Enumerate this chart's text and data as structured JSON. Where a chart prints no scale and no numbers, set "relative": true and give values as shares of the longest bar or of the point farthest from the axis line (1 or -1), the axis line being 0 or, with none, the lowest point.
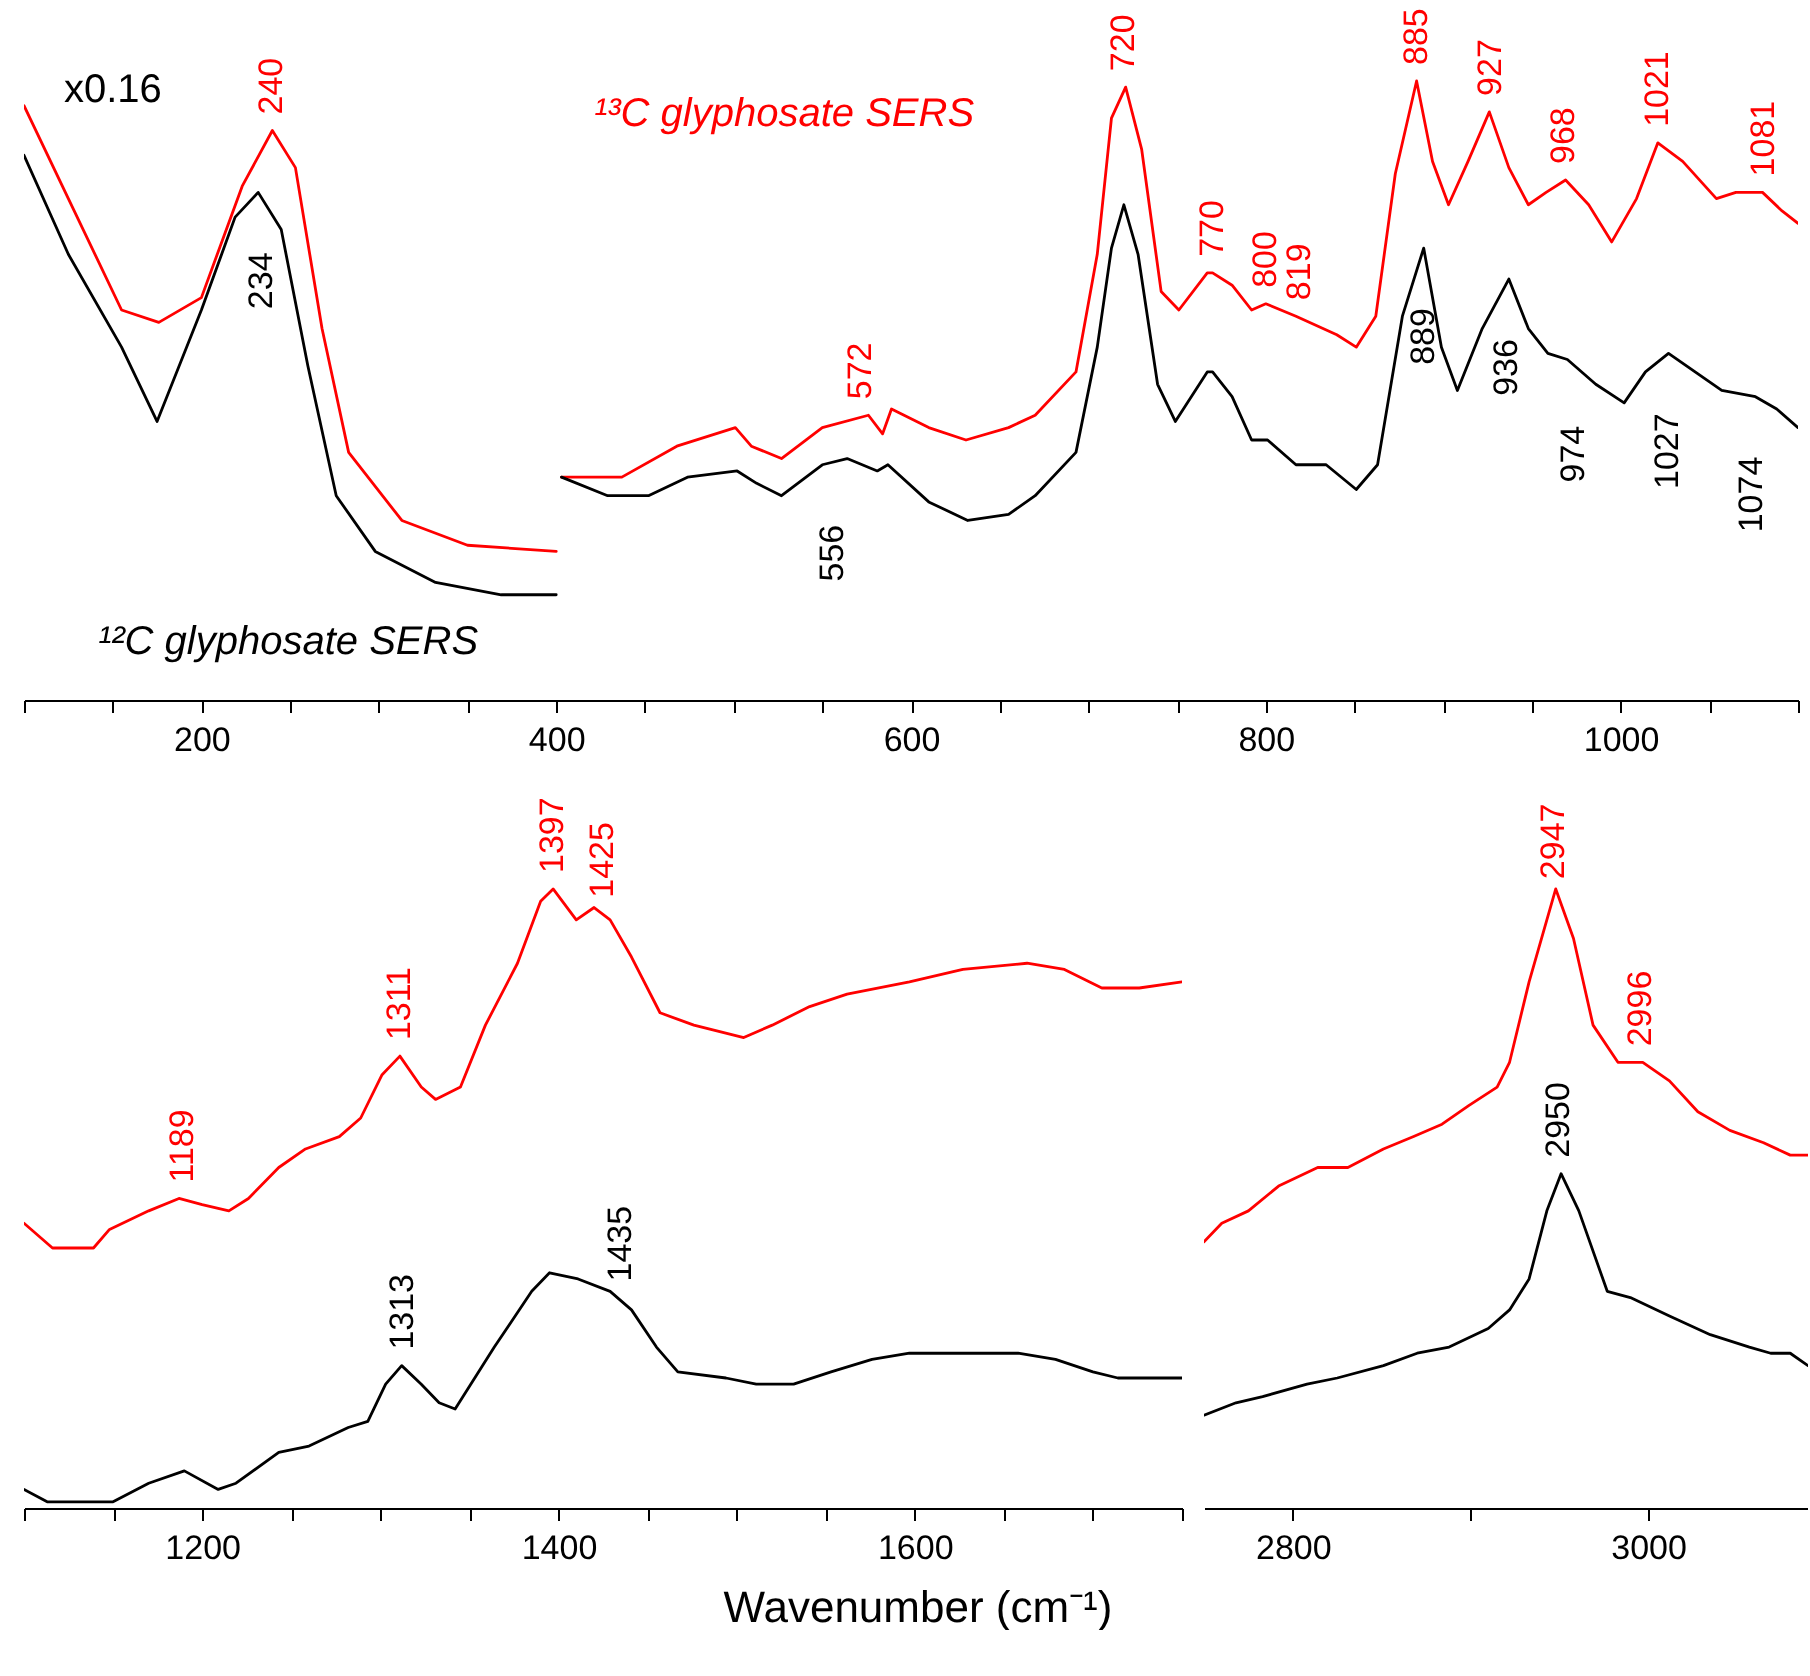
{
  "chart_data": [
    {
      "type": "line",
      "relative": true,
      "xlim": [
        100,
        1100
      ],
      "xticks": [
        {
          "value": 100,
          "label": null
        },
        {
          "value": 150,
          "label": null
        },
        200,
        {
          "value": 250,
          "label": null
        },
        {
          "value": 300,
          "label": null
        },
        {
          "value": 350,
          "label": null
        },
        400,
        {
          "value": 450,
          "label": null
        },
        {
          "value": 500,
          "label": null
        },
        {
          "value": 550,
          "label": null
        },
        600,
        {
          "value": 650,
          "label": null
        },
        {
          "value": 700,
          "label": null
        },
        {
          "value": 750,
          "label": null
        },
        800,
        {
          "value": 850,
          "label": null
        },
        {
          "value": 900,
          "label": null
        },
        {
          "value": 950,
          "label": null
        },
        1000,
        {
          "value": 1050,
          "label": null
        },
        {
          "value": 1100,
          "label": null
        }
      ],
      "annotations": [
        "x0.16",
        {
          "text": "240",
          "x": 240,
          "y": 0.92
        },
        {
          "text": "234",
          "x": 234,
          "y": 0.82
        },
        {
          "text": "572",
          "x": 572,
          "y": 0.46
        },
        {
          "text": "556",
          "x": 556,
          "y": 0.38
        },
        {
          "text": "720",
          "x": 720,
          "y": 0.99
        },
        {
          "text": "770",
          "x": 770,
          "y": 0.69
        },
        {
          "text": "800",
          "x": 800,
          "y": 0.64
        },
        {
          "text": "819",
          "x": 819,
          "y": 0.62
        },
        {
          "text": "885",
          "x": 885,
          "y": 1.0
        },
        {
          "text": "927",
          "x": 927,
          "y": 0.95
        },
        {
          "text": "968",
          "x": 968,
          "y": 0.84
        },
        {
          "text": "1021",
          "x": 1021,
          "y": 0.9
        },
        {
          "text": "1081",
          "x": 1081,
          "y": 0.82
        },
        {
          "text": "889",
          "x": 889,
          "y": 0.73
        },
        {
          "text": "936",
          "x": 936,
          "y": 0.68
        },
        {
          "text": "974",
          "x": 974,
          "y": 0.54
        },
        {
          "text": "1027",
          "x": 1027,
          "y": 0.56
        },
        {
          "text": "1074",
          "x": 1074,
          "y": 0.49
        }
      ],
      "series": [
        {
          "name": "¹³C glyphosate SERS",
          "color": "#ff0000",
          "x": [
            100,
            125,
            155,
            176,
            200,
            223,
            240,
            253,
            268,
            283,
            313,
            350,
            400,
            401,
            403,
            437,
            468,
            501,
            510,
            527,
            550,
            576,
            584,
            589,
            610,
            631,
            655,
            670,
            693,
            705,
            713,
            721,
            730,
            741,
            751,
            767,
            770,
            781,
            792,
            800,
            817,
            840,
            851,
            862,
            873,
            885,
            894,
            903,
            914,
            926,
            937,
            948,
            958,
            969,
            982,
            995,
            1009,
            1021,
            1035,
            1054,
            1065,
            1080,
            1091,
            1100
          ],
          "values": [
            0.96,
            0.81,
            0.63,
            0.61,
            0.65,
            0.83,
            0.92,
            0.86,
            0.6,
            0.4,
            0.29,
            0.25,
            0.24,
            null,
            0.36,
            0.36,
            0.41,
            0.44,
            0.41,
            0.39,
            0.44,
            0.46,
            0.43,
            0.47,
            0.44,
            0.42,
            0.44,
            0.46,
            0.53,
            0.72,
            0.94,
            0.99,
            0.89,
            0.66,
            0.63,
            0.69,
            0.69,
            0.67,
            0.63,
            0.64,
            0.62,
            0.59,
            0.57,
            0.62,
            0.85,
            1.0,
            0.87,
            0.8,
            0.87,
            0.95,
            0.86,
            0.8,
            0.82,
            0.84,
            0.8,
            0.74,
            0.81,
            0.9,
            0.87,
            0.81,
            0.82,
            0.82,
            0.79,
            0.77
          ]
        },
        {
          "name": "¹²C glyphosate SERS",
          "color": "#000000",
          "x": [
            100,
            125,
            155,
            175,
            200,
            219,
            232,
            245,
            260,
            276,
            298,
            332,
            369,
            400,
            401,
            403,
            429,
            452,
            474,
            502,
            513,
            527,
            550,
            564,
            581,
            587,
            610,
            632,
            655,
            670,
            693,
            705,
            713,
            720,
            728,
            739,
            749,
            767,
            770,
            781,
            792,
            801,
            817,
            834,
            851,
            863,
            877,
            889,
            899,
            908,
            922,
            937,
            948,
            959,
            970,
            986,
            1002,
            1014,
            1027,
            1042,
            1057,
            1076,
            1088,
            1100
          ],
          "values": [
            0.88,
            0.72,
            0.57,
            0.45,
            0.63,
            0.78,
            0.82,
            0.76,
            0.54,
            0.33,
            0.24,
            0.19,
            0.17,
            0.17,
            null,
            0.36,
            0.33,
            0.33,
            0.36,
            0.37,
            0.35,
            0.33,
            0.38,
            0.39,
            0.37,
            0.38,
            0.32,
            0.29,
            0.3,
            0.33,
            0.4,
            0.57,
            0.73,
            0.8,
            0.72,
            0.51,
            0.45,
            0.53,
            0.53,
            0.49,
            0.42,
            0.42,
            0.38,
            0.38,
            0.34,
            0.38,
            0.62,
            0.73,
            0.57,
            0.5,
            0.6,
            0.68,
            0.6,
            0.56,
            0.55,
            0.51,
            0.48,
            0.53,
            0.56,
            0.53,
            0.5,
            0.49,
            0.47,
            0.44
          ]
        }
      ]
    },
    {
      "type": "line",
      "relative": true,
      "xlim": [
        1100,
        1750
      ],
      "xlabel": "Wavenumber (cm⁻¹)",
      "xticks": [
        {
          "value": 1100,
          "label": null
        },
        {
          "value": 1150,
          "label": null
        },
        1200,
        {
          "value": 1250,
          "label": null
        },
        {
          "value": 1300,
          "label": null
        },
        {
          "value": 1350,
          "label": null
        },
        1400,
        {
          "value": 1450,
          "label": null
        },
        {
          "value": 1500,
          "label": null
        },
        {
          "value": 1550,
          "label": null
        },
        1600,
        {
          "value": 1650,
          "label": null
        },
        {
          "value": 1700,
          "label": null
        },
        {
          "value": 1750,
          "label": null
        }
      ],
      "annotations": [
        {
          "text": "1189",
          "x": 1189,
          "y": 0.5
        },
        {
          "text": "1311",
          "x": 1311,
          "y": 0.73
        },
        {
          "text": "1397",
          "x": 1397,
          "y": 1.0
        },
        {
          "text": "1425",
          "x": 1425,
          "y": 0.96
        },
        {
          "text": "1313",
          "x": 1313,
          "y": 0.23
        },
        {
          "text": "1435",
          "x": 1435,
          "y": 0.34
        }
      ],
      "series": [
        {
          "color": "#ff0000",
          "x": [
            1100,
            1116,
            1139,
            1148,
            1170,
            1187,
            1200,
            1215,
            1226,
            1243,
            1258,
            1277,
            1289,
            1301,
            1311,
            1323,
            1331,
            1345,
            1359,
            1377,
            1390,
            1397,
            1410,
            1420,
            1429,
            1441,
            1457,
            1476,
            1504,
            1520,
            1541,
            1562,
            1597,
            1627,
            1663,
            1684,
            1705,
            1726,
            1750
          ],
          "values": [
            0.46,
            0.42,
            0.42,
            0.45,
            0.48,
            0.5,
            0.49,
            0.48,
            0.5,
            0.55,
            0.58,
            0.6,
            0.63,
            0.7,
            0.73,
            0.68,
            0.66,
            0.68,
            0.78,
            0.88,
            0.98,
            1.0,
            0.95,
            0.97,
            0.95,
            0.89,
            0.8,
            0.78,
            0.76,
            0.78,
            0.81,
            0.83,
            0.85,
            0.87,
            0.88,
            0.87,
            0.84,
            0.84,
            0.85
          ]
        },
        {
          "color": "#000000",
          "x": [
            1100,
            1113,
            1135,
            1150,
            1170,
            1190,
            1209,
            1219,
            1243,
            1260,
            1282,
            1293,
            1303,
            1312,
            1323,
            1333,
            1342,
            1364,
            1385,
            1395,
            1411,
            1429,
            1441,
            1455,
            1467,
            1494,
            1511,
            1532,
            1553,
            1576,
            1597,
            1627,
            1658,
            1679,
            1700,
            1714,
            1750
          ],
          "values": [
            0.03,
            0.01,
            0.01,
            0.01,
            0.04,
            0.06,
            0.03,
            0.04,
            0.09,
            0.1,
            0.13,
            0.14,
            0.2,
            0.23,
            0.2,
            0.17,
            0.16,
            0.26,
            0.35,
            0.38,
            0.37,
            0.35,
            0.32,
            0.26,
            0.22,
            0.21,
            0.2,
            0.2,
            0.22,
            0.24,
            0.25,
            0.25,
            0.25,
            0.24,
            0.22,
            0.21,
            0.21
          ]
        }
      ]
    },
    {
      "type": "line",
      "relative": true,
      "xlim": [
        2750,
        3090
      ],
      "xticks": [
        2800,
        {
          "value": 2900,
          "label": null
        },
        3000
      ],
      "annotations": [
        {
          "text": "2947",
          "x": 2947,
          "y": 0.99
        },
        {
          "text": "2996",
          "x": 2996,
          "y": 0.72
        },
        {
          "text": "2950",
          "x": 2950,
          "y": 0.54
        }
      ],
      "series": [
        {
          "color": "#ff0000",
          "x": [
            2750,
            2760,
            2775,
            2792,
            2814,
            2831,
            2851,
            2868,
            2884,
            2899,
            2915,
            2922,
            2933,
            2948,
            2958,
            2969,
            2983,
            2997,
            3012,
            3028,
            3046,
            3065,
            3080,
            3090
          ],
          "values": [
            0.43,
            0.46,
            0.48,
            0.52,
            0.55,
            0.55,
            0.58,
            0.6,
            0.62,
            0.65,
            0.68,
            0.72,
            0.85,
            1.0,
            0.92,
            0.78,
            0.72,
            0.72,
            0.69,
            0.64,
            0.61,
            0.59,
            0.57,
            0.57
          ]
        },
        {
          "color": "#000000",
          "x": [
            2750,
            2768,
            2783,
            2808,
            2825,
            2851,
            2870,
            2888,
            2910,
            2922,
            2933,
            2943,
            2951,
            2961,
            2977,
            2990,
            3012,
            3035,
            3057,
            3069,
            3080,
            3090
          ],
          "values": [
            0.15,
            0.17,
            0.18,
            0.2,
            0.21,
            0.23,
            0.25,
            0.26,
            0.29,
            0.32,
            0.37,
            0.48,
            0.54,
            0.48,
            0.35,
            0.34,
            0.31,
            0.28,
            0.26,
            0.25,
            0.25,
            0.23
          ]
        }
      ]
    }
  ]
}
